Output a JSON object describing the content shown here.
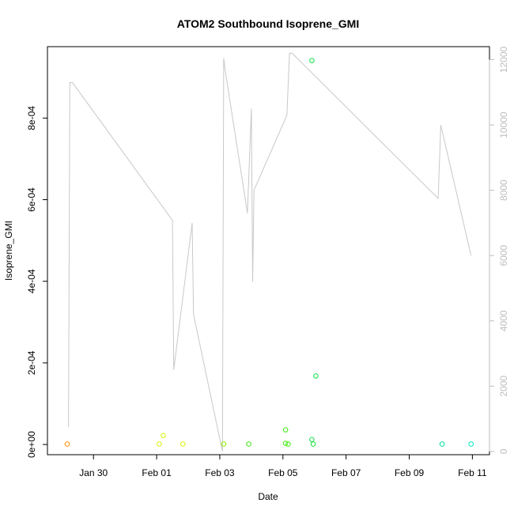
{
  "chart_data": {
    "type": "scatter",
    "title": "ATOM2 Southbound Isoprene_GMI",
    "xlabel": "Date",
    "ylabel": "Isoprene_GMI",
    "x_ticks": [
      "Jan 30",
      "Feb 01",
      "Feb 03",
      "Feb 05",
      "Feb 07",
      "Feb 09",
      "Feb 11"
    ],
    "y_ticks": [
      "0e+00",
      "2e-04",
      "4e-04",
      "6e-04",
      "8e-04"
    ],
    "y2_ticks": [
      "0",
      "2000",
      "4000",
      "6000",
      "8000",
      "10000",
      "12000"
    ],
    "xlim": [
      "2017-01-28T13:00",
      "2017-02-11T13:00"
    ],
    "ylim": [
      -2.5e-05,
      0.000975
    ],
    "y2lim": [
      -100,
      12400
    ],
    "grid": false,
    "colors": {
      "scatter_gradient": [
        "#ff8c00",
        "#ffd000",
        "#d9f500",
        "#8cf000",
        "#40ec10",
        "#10e040",
        "#00e070",
        "#00e0a0",
        "#00e8c0"
      ],
      "altitude_line": "#c8c8c8",
      "secondary_axis": "#bdbdbd"
    },
    "series": [
      {
        "kind": "scatter",
        "points": [
          {
            "x": "2017-01-29T04:00",
            "y": 1e-06
          },
          {
            "x": "2017-02-01T02:00",
            "y": 1e-06
          },
          {
            "x": "2017-02-01T05:00",
            "y": 2.2e-05
          },
          {
            "x": "2017-02-01T20:00",
            "y": 1e-06
          },
          {
            "x": "2017-02-03T03:00",
            "y": 1e-06
          },
          {
            "x": "2017-02-03T22:00",
            "y": 1e-06
          },
          {
            "x": "2017-02-05T02:00",
            "y": 3e-06
          },
          {
            "x": "2017-02-05T02:00",
            "y": 3.6e-05
          },
          {
            "x": "2017-02-05T04:00",
            "y": 1e-06
          },
          {
            "x": "2017-02-05T22:00",
            "y": 0.000941
          },
          {
            "x": "2017-02-05T22:00",
            "y": 1.2e-05
          },
          {
            "x": "2017-02-05T23:00",
            "y": 1e-06
          },
          {
            "x": "2017-02-06T01:00",
            "y": 0.000168
          },
          {
            "x": "2017-02-10T01:00",
            "y": 1e-06
          },
          {
            "x": "2017-02-10T23:00",
            "y": 1e-06
          }
        ]
      },
      {
        "kind": "line",
        "axis": "y2",
        "points": [
          {
            "x": "2017-01-29T05:00",
            "y": 750
          },
          {
            "x": "2017-01-29T06:00",
            "y": 11300
          },
          {
            "x": "2017-01-29T08:00",
            "y": 11300
          },
          {
            "x": "2017-02-01T12:00",
            "y": 7080
          },
          {
            "x": "2017-02-01T13:00",
            "y": 2500
          },
          {
            "x": "2017-02-02T03:00",
            "y": 7000
          },
          {
            "x": "2017-02-02T04:00",
            "y": 4200
          },
          {
            "x": "2017-02-03T02:00",
            "y": 0
          },
          {
            "x": "2017-02-03T03:00",
            "y": 12050
          },
          {
            "x": "2017-02-03T04:00",
            "y": 11700
          },
          {
            "x": "2017-02-03T21:00",
            "y": 7300
          },
          {
            "x": "2017-02-04T00:00",
            "y": 10500
          },
          {
            "x": "2017-02-04T01:00",
            "y": 5200
          },
          {
            "x": "2017-02-04T02:00",
            "y": 8000
          },
          {
            "x": "2017-02-05T03:00",
            "y": 10300
          },
          {
            "x": "2017-02-05T05:00",
            "y": 12200
          },
          {
            "x": "2017-02-05T07:00",
            "y": 12200
          },
          {
            "x": "2017-02-09T22:00",
            "y": 7750
          },
          {
            "x": "2017-02-10T00:00",
            "y": 10000
          },
          {
            "x": "2017-02-10T23:00",
            "y": 6000
          }
        ]
      }
    ]
  }
}
